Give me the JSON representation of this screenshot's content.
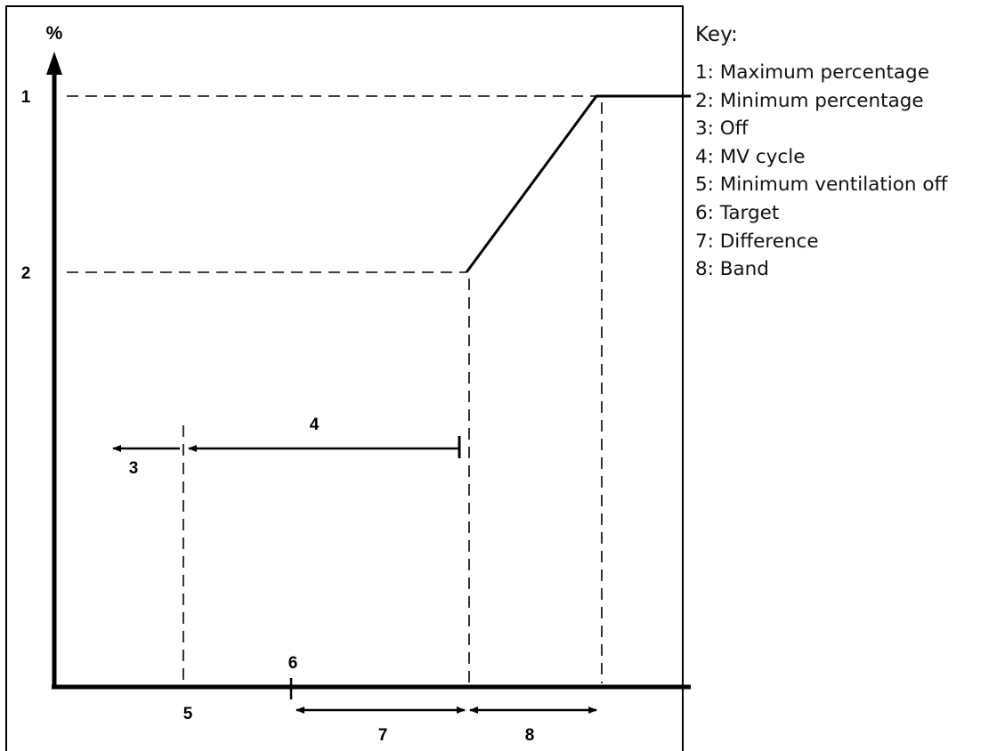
{
  "diagram": {
    "y_axis_label": "%",
    "y_level_labels": [
      "1",
      "2"
    ],
    "region_labels": {
      "off": "3",
      "mv_cycle": "4",
      "min_ventilation_off": "5",
      "target": "6",
      "difference": "7",
      "band": "8"
    }
  },
  "key": {
    "title": "Key:",
    "items": [
      "1: Maximum percentage",
      "2: Minimum percentage",
      "3: Off",
      "4: MV cycle",
      "5: Minimum ventilation off",
      "6: Target",
      "7: Difference",
      "8: Band"
    ]
  },
  "colors": {
    "line": "#000000",
    "frame": "#000000",
    "background": "#ffffff"
  }
}
